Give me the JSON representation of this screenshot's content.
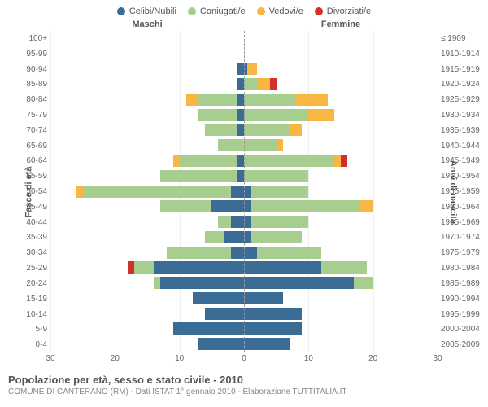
{
  "chart": {
    "type": "population-pyramid",
    "background_color": "#ffffff",
    "grid_color": "#eeeeee",
    "centerline_color": "#999999",
    "text_color": "#666666",
    "header_male": "Maschi",
    "header_female": "Femmine",
    "ylabel_left": "Fasce di età",
    "ylabel_right": "Anni di nascita",
    "x_max": 30,
    "x_ticks": [
      30,
      20,
      10,
      0,
      10,
      20,
      30
    ],
    "legend": [
      {
        "label": "Celibi/Nubili",
        "color": "#3b6c95"
      },
      {
        "label": "Coniugati/e",
        "color": "#a7cd8f"
      },
      {
        "label": "Vedovi/e",
        "color": "#f7b742"
      },
      {
        "label": "Divorziati/e",
        "color": "#d2302a"
      }
    ],
    "segments": [
      "single",
      "married",
      "widowed",
      "divorced"
    ],
    "segment_colors": {
      "single": "#3b6c95",
      "married": "#a7cd8f",
      "widowed": "#f7b742",
      "divorced": "#d2302a"
    },
    "title": "Popolazione per età, sesso e stato civile - 2010",
    "subtitle": "COMUNE DI CANTERANO (RM) - Dati ISTAT 1° gennaio 2010 - Elaborazione TUTTITALIA.IT",
    "rows": [
      {
        "age": "100+",
        "birth": "≤ 1909",
        "m": {
          "single": 0,
          "married": 0,
          "widowed": 0,
          "divorced": 0
        },
        "f": {
          "single": 0,
          "married": 0,
          "widowed": 0,
          "divorced": 0
        }
      },
      {
        "age": "95-99",
        "birth": "1910-1914",
        "m": {
          "single": 0,
          "married": 0,
          "widowed": 0,
          "divorced": 0
        },
        "f": {
          "single": 0,
          "married": 0,
          "widowed": 0,
          "divorced": 0
        }
      },
      {
        "age": "90-94",
        "birth": "1915-1919",
        "m": {
          "single": 1,
          "married": 0,
          "widowed": 0,
          "divorced": 0
        },
        "f": {
          "single": 0.5,
          "married": 0,
          "widowed": 1.5,
          "divorced": 0
        }
      },
      {
        "age": "85-89",
        "birth": "1920-1924",
        "m": {
          "single": 1,
          "married": 0,
          "widowed": 0,
          "divorced": 0
        },
        "f": {
          "single": 0,
          "married": 2,
          "widowed": 2,
          "divorced": 1
        }
      },
      {
        "age": "80-84",
        "birth": "1925-1929",
        "m": {
          "single": 1,
          "married": 6,
          "widowed": 2,
          "divorced": 0
        },
        "f": {
          "single": 0,
          "married": 8,
          "widowed": 5,
          "divorced": 0
        }
      },
      {
        "age": "75-79",
        "birth": "1930-1934",
        "m": {
          "single": 1,
          "married": 6,
          "widowed": 0,
          "divorced": 0
        },
        "f": {
          "single": 0,
          "married": 10,
          "widowed": 4,
          "divorced": 0
        }
      },
      {
        "age": "70-74",
        "birth": "1935-1939",
        "m": {
          "single": 1,
          "married": 5,
          "widowed": 0,
          "divorced": 0
        },
        "f": {
          "single": 0,
          "married": 7,
          "widowed": 2,
          "divorced": 0
        }
      },
      {
        "age": "65-69",
        "birth": "1940-1944",
        "m": {
          "single": 0,
          "married": 4,
          "widowed": 0,
          "divorced": 0
        },
        "f": {
          "single": 0,
          "married": 5,
          "widowed": 1,
          "divorced": 0
        }
      },
      {
        "age": "60-64",
        "birth": "1945-1949",
        "m": {
          "single": 1,
          "married": 9,
          "widowed": 1,
          "divorced": 0
        },
        "f": {
          "single": 0,
          "married": 14,
          "widowed": 1,
          "divorced": 1
        }
      },
      {
        "age": "55-59",
        "birth": "1950-1954",
        "m": {
          "single": 1,
          "married": 12,
          "widowed": 0,
          "divorced": 0
        },
        "f": {
          "single": 0,
          "married": 10,
          "widowed": 0,
          "divorced": 0
        }
      },
      {
        "age": "50-54",
        "birth": "1955-1959",
        "m": {
          "single": 2,
          "married": 23,
          "widowed": 1,
          "divorced": 0
        },
        "f": {
          "single": 1,
          "married": 9,
          "widowed": 0,
          "divorced": 0
        }
      },
      {
        "age": "45-49",
        "birth": "1960-1964",
        "m": {
          "single": 5,
          "married": 8,
          "widowed": 0,
          "divorced": 0
        },
        "f": {
          "single": 1,
          "married": 17,
          "widowed": 2,
          "divorced": 0
        }
      },
      {
        "age": "40-44",
        "birth": "1965-1969",
        "m": {
          "single": 2,
          "married": 2,
          "widowed": 0,
          "divorced": 0
        },
        "f": {
          "single": 1,
          "married": 9,
          "widowed": 0,
          "divorced": 0
        }
      },
      {
        "age": "35-39",
        "birth": "1970-1974",
        "m": {
          "single": 3,
          "married": 3,
          "widowed": 0,
          "divorced": 0
        },
        "f": {
          "single": 1,
          "married": 8,
          "widowed": 0,
          "divorced": 0
        }
      },
      {
        "age": "30-34",
        "birth": "1975-1979",
        "m": {
          "single": 2,
          "married": 10,
          "widowed": 0,
          "divorced": 0
        },
        "f": {
          "single": 2,
          "married": 10,
          "widowed": 0,
          "divorced": 0
        }
      },
      {
        "age": "25-29",
        "birth": "1980-1984",
        "m": {
          "single": 14,
          "married": 3,
          "widowed": 0,
          "divorced": 1
        },
        "f": {
          "single": 12,
          "married": 7,
          "widowed": 0,
          "divorced": 0
        }
      },
      {
        "age": "20-24",
        "birth": "1985-1989",
        "m": {
          "single": 13,
          "married": 1,
          "widowed": 0,
          "divorced": 0
        },
        "f": {
          "single": 17,
          "married": 3,
          "widowed": 0,
          "divorced": 0
        }
      },
      {
        "age": "15-19",
        "birth": "1990-1994",
        "m": {
          "single": 8,
          "married": 0,
          "widowed": 0,
          "divorced": 0
        },
        "f": {
          "single": 6,
          "married": 0,
          "widowed": 0,
          "divorced": 0
        }
      },
      {
        "age": "10-14",
        "birth": "1995-1999",
        "m": {
          "single": 6,
          "married": 0,
          "widowed": 0,
          "divorced": 0
        },
        "f": {
          "single": 9,
          "married": 0,
          "widowed": 0,
          "divorced": 0
        }
      },
      {
        "age": "5-9",
        "birth": "2000-2004",
        "m": {
          "single": 11,
          "married": 0,
          "widowed": 0,
          "divorced": 0
        },
        "f": {
          "single": 9,
          "married": 0,
          "widowed": 0,
          "divorced": 0
        }
      },
      {
        "age": "0-4",
        "birth": "2005-2009",
        "m": {
          "single": 7,
          "married": 0,
          "widowed": 0,
          "divorced": 0
        },
        "f": {
          "single": 7,
          "married": 0,
          "widowed": 0,
          "divorced": 0
        }
      }
    ]
  }
}
